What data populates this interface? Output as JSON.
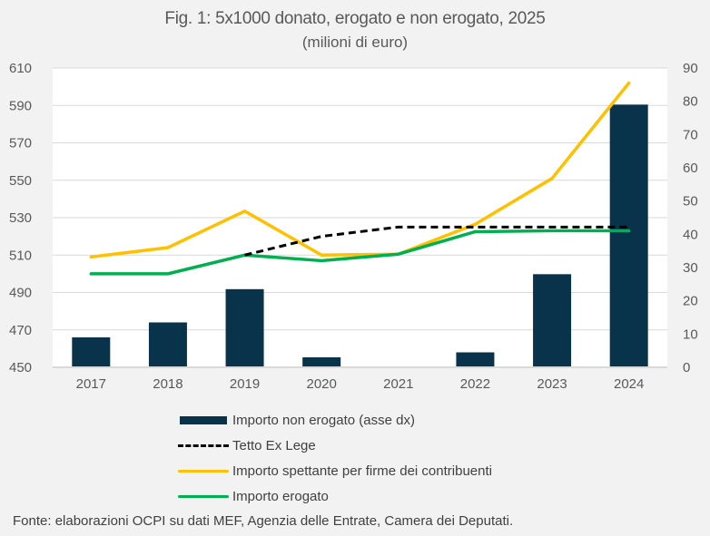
{
  "chart_data": {
    "type": "bar+line",
    "title": "Fig. 1: 5x1000 donato, erogato e non erogato, 2025",
    "subtitle": "(milioni di euro)",
    "categories": [
      "2017",
      "2018",
      "2019",
      "2020",
      "2021",
      "2022",
      "2023",
      "2024"
    ],
    "left_axis": {
      "ylim": [
        450,
        610
      ],
      "ticks": [
        450,
        470,
        490,
        510,
        530,
        550,
        570,
        590,
        610
      ]
    },
    "right_axis": {
      "ylim": [
        0,
        90
      ],
      "ticks": [
        0,
        10,
        20,
        30,
        40,
        50,
        60,
        70,
        80,
        90
      ]
    },
    "grid": true,
    "legend_position": "bottom",
    "series": [
      {
        "name": "Importo non erogato (asse dx)",
        "type": "bar",
        "axis": "right",
        "color": "#08334a",
        "values": [
          9,
          13.5,
          23.5,
          3,
          0,
          4.5,
          28,
          79
        ]
      },
      {
        "name": "Tetto Ex Lege",
        "type": "line",
        "style": "dashed",
        "axis": "left",
        "color": "#000000",
        "values": [
          null,
          null,
          510,
          520,
          525,
          525,
          525,
          525
        ]
      },
      {
        "name": "Importo spettante per firme dei contribuenti",
        "type": "line",
        "axis": "left",
        "color": "#ffc000",
        "values": [
          509,
          514,
          533.5,
          510,
          510.5,
          526.5,
          551,
          602
        ]
      },
      {
        "name": "Importo erogato",
        "type": "line",
        "axis": "left",
        "color": "#00b050",
        "values": [
          500,
          500,
          510,
          507,
          510.5,
          522.5,
          523,
          523
        ]
      }
    ],
    "source": "Fonte: elaborazioni OCPI su dati MEF, Agenzia delle Entrate, Camera dei Deputati."
  }
}
